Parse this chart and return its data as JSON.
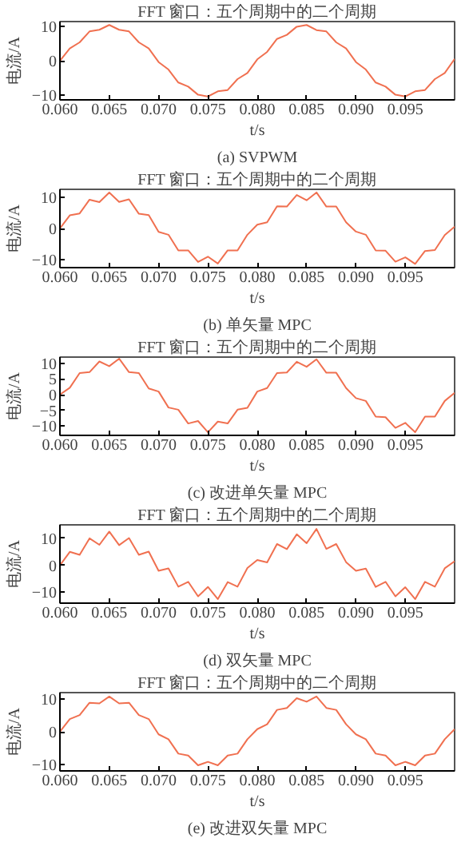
{
  "chart_data": [
    {
      "type": "line",
      "title": "FFT 窗口：五个周期中的二个周期",
      "xlabel": "t/s",
      "ylabel": "电流/A",
      "annotations": [
        "(a) SVPWM"
      ],
      "grid": false,
      "xlim": [
        0.06,
        0.1
      ],
      "xticks": [
        {
          "value": 0.06,
          "label": "0.060"
        },
        {
          "value": 0.065,
          "label": "0.065"
        },
        {
          "value": 0.07,
          "label": "0.070"
        },
        {
          "value": 0.075,
          "label": "0.075"
        },
        {
          "value": 0.08,
          "label": "0.080"
        },
        {
          "value": 0.085,
          "label": "0.085"
        },
        {
          "value": 0.09,
          "label": "0.090"
        },
        {
          "value": 0.095,
          "label": "0.095"
        }
      ],
      "ylim": [
        -11.5,
        11.5
      ],
      "yticks": [
        -10,
        0,
        10
      ],
      "x": [
        0.06,
        0.061,
        0.062,
        0.063,
        0.064,
        0.065,
        0.066,
        0.067,
        0.068,
        0.069,
        0.07,
        0.071,
        0.072,
        0.073,
        0.074,
        0.075,
        0.076,
        0.077,
        0.078,
        0.079,
        0.08,
        0.081,
        0.082,
        0.083,
        0.084,
        0.085,
        0.086,
        0.087,
        0.088,
        0.089,
        0.09,
        0.091,
        0.092,
        0.093,
        0.094,
        0.095,
        0.096,
        0.097,
        0.098,
        0.099,
        0.1
      ],
      "series": [
        {
          "color": "#f07050",
          "values": [
            0,
            3.6,
            5.4,
            8.6,
            9.1,
            10.5,
            9.1,
            8.6,
            5.4,
            3.6,
            -0.4,
            -2.6,
            -6.4,
            -7.6,
            -10,
            -10.5,
            -9,
            -8.6,
            -5.4,
            -3.6,
            0.4,
            2.6,
            6.4,
            7.6,
            10,
            10.5,
            9,
            8.6,
            5.4,
            3.6,
            -0.4,
            -2.6,
            -6.4,
            -7.6,
            -10,
            -10.5,
            -9,
            -8.6,
            -5.4,
            -3.6,
            0.5
          ]
        }
      ]
    },
    {
      "type": "line",
      "title": "FFT 窗口：五个周期中的二个周期",
      "xlabel": "t/s",
      "ylabel": "电流/A",
      "annotations": [
        "(b) 单矢量 MPC"
      ],
      "grid": false,
      "xlim": [
        0.06,
        0.1
      ],
      "xticks": [
        {
          "value": 0.06,
          "label": "0.060"
        },
        {
          "value": 0.065,
          "label": "0.065"
        },
        {
          "value": 0.07,
          "label": "0.070"
        },
        {
          "value": 0.075,
          "label": "0.075"
        },
        {
          "value": 0.08,
          "label": "0.080"
        },
        {
          "value": 0.085,
          "label": "0.085"
        },
        {
          "value": 0.09,
          "label": "0.090"
        },
        {
          "value": 0.095,
          "label": "0.095"
        }
      ],
      "ylim": [
        -12.5,
        12.5
      ],
      "yticks": [
        -10,
        0,
        10
      ],
      "x": [
        0.06,
        0.061,
        0.062,
        0.063,
        0.064,
        0.065,
        0.066,
        0.067,
        0.068,
        0.069,
        0.07,
        0.071,
        0.072,
        0.073,
        0.074,
        0.075,
        0.076,
        0.077,
        0.078,
        0.079,
        0.08,
        0.081,
        0.082,
        0.083,
        0.084,
        0.085,
        0.086,
        0.087,
        0.088,
        0.089,
        0.09,
        0.091,
        0.092,
        0.093,
        0.094,
        0.095,
        0.096,
        0.097,
        0.098,
        0.099,
        0.1
      ],
      "series": [
        {
          "color": "#f07050",
          "values": [
            0,
            4.2,
            4.8,
            9.2,
            8.4,
            11.5,
            8.5,
            9.3,
            4.7,
            4.3,
            -1.1,
            -2,
            -7,
            -7,
            -10.7,
            -9,
            -11.2,
            -7,
            -7,
            -2,
            1.2,
            2,
            7.1,
            7,
            10.7,
            9,
            11.5,
            7,
            7,
            2,
            -1,
            -2,
            -7,
            -7.1,
            -10.6,
            -9.2,
            -11.3,
            -7.2,
            -6.9,
            -2.1,
            0.6
          ]
        }
      ]
    },
    {
      "type": "line",
      "title": "FFT 窗口：五个周期中的二个周期",
      "xlabel": "t/s",
      "ylabel": "电流/A",
      "annotations": [
        "(c) 改进单矢量 MPC"
      ],
      "grid": false,
      "xlim": [
        0.06,
        0.1
      ],
      "xticks": [
        {
          "value": 0.06,
          "label": "0.060"
        },
        {
          "value": 0.065,
          "label": "0.065"
        },
        {
          "value": 0.07,
          "label": "0.070"
        },
        {
          "value": 0.075,
          "label": "0.075"
        },
        {
          "value": 0.08,
          "label": "0.080"
        },
        {
          "value": 0.085,
          "label": "0.085"
        },
        {
          "value": 0.09,
          "label": "0.090"
        },
        {
          "value": 0.095,
          "label": "0.095"
        }
      ],
      "ylim": [
        -13,
        12
      ],
      "yticks": [
        -10,
        -5,
        0,
        5,
        10
      ],
      "x": [
        0.06,
        0.061,
        0.062,
        0.063,
        0.064,
        0.065,
        0.066,
        0.067,
        0.068,
        0.069,
        0.07,
        0.071,
        0.072,
        0.073,
        0.074,
        0.075,
        0.076,
        0.077,
        0.078,
        0.079,
        0.08,
        0.081,
        0.082,
        0.083,
        0.084,
        0.085,
        0.086,
        0.087,
        0.088,
        0.089,
        0.09,
        0.091,
        0.092,
        0.093,
        0.094,
        0.095,
        0.096,
        0.097,
        0.098,
        0.099,
        0.1
      ],
      "series": [
        {
          "color": "#f07050",
          "values": [
            0,
            2.2,
            6.9,
            7.2,
            10.6,
            9.1,
            11.5,
            7.2,
            6.9,
            2,
            1,
            -4.1,
            -4.8,
            -9.2,
            -8.4,
            -12,
            -8.6,
            -9.2,
            -4.8,
            -4.2,
            1,
            2.1,
            6.9,
            7.1,
            10.5,
            8.9,
            11.3,
            7,
            7,
            2.1,
            -1.1,
            -2,
            -7,
            -7.2,
            -10.6,
            -9,
            -12,
            -7,
            -7,
            -2,
            0.6
          ]
        }
      ]
    },
    {
      "type": "line",
      "title": "FFT 窗口：五个周期中的二个周期",
      "xlabel": "t/s",
      "ylabel": "电流/A",
      "annotations": [
        "(d) 双矢量 MPC"
      ],
      "grid": false,
      "xlim": [
        0.06,
        0.1
      ],
      "xticks": [
        {
          "value": 0.06,
          "label": "0.060"
        },
        {
          "value": 0.065,
          "label": "0.065"
        },
        {
          "value": 0.07,
          "label": "0.070"
        },
        {
          "value": 0.075,
          "label": "0.075"
        },
        {
          "value": 0.08,
          "label": "0.080"
        },
        {
          "value": 0.085,
          "label": "0.085"
        },
        {
          "value": 0.09,
          "label": "0.090"
        },
        {
          "value": 0.095,
          "label": "0.095"
        }
      ],
      "ylim": [
        -14,
        15
      ],
      "yticks": [
        -10,
        0,
        10
      ],
      "x": [
        0.06,
        0.061,
        0.062,
        0.063,
        0.064,
        0.065,
        0.066,
        0.067,
        0.068,
        0.069,
        0.07,
        0.071,
        0.072,
        0.073,
        0.074,
        0.075,
        0.076,
        0.077,
        0.078,
        0.079,
        0.08,
        0.081,
        0.082,
        0.083,
        0.084,
        0.085,
        0.086,
        0.087,
        0.088,
        0.089,
        0.09,
        0.091,
        0.092,
        0.093,
        0.094,
        0.095,
        0.096,
        0.097,
        0.098,
        0.099,
        0.1
      ],
      "series": [
        {
          "color": "#f07050",
          "values": [
            0,
            5,
            3.9,
            10,
            7.6,
            12.5,
            7.5,
            10.1,
            3.9,
            5.1,
            -2,
            -1.1,
            -7.9,
            -6.1,
            -11.5,
            -8,
            -12.5,
            -6.2,
            -7.9,
            -1,
            2,
            1.1,
            7.9,
            6,
            11.5,
            8.2,
            13.5,
            6.1,
            7.9,
            1.2,
            -2,
            -1.2,
            -8,
            -6.1,
            -11.5,
            -8.1,
            -12.5,
            -6.1,
            -7.9,
            -1.1,
            1.5
          ]
        }
      ]
    },
    {
      "type": "line",
      "title": "FFT 窗口：五个周期中的二个周期",
      "xlabel": "t/s",
      "ylabel": "电流/A",
      "annotations": [
        "(e) 改进双矢量 MPC"
      ],
      "grid": false,
      "xlim": [
        0.06,
        0.1
      ],
      "xticks": [
        {
          "value": 0.06,
          "label": "0.060"
        },
        {
          "value": 0.065,
          "label": "0.065"
        },
        {
          "value": 0.07,
          "label": "0.070"
        },
        {
          "value": 0.075,
          "label": "0.075"
        },
        {
          "value": 0.08,
          "label": "0.080"
        },
        {
          "value": 0.085,
          "label": "0.085"
        },
        {
          "value": 0.09,
          "label": "0.090"
        },
        {
          "value": 0.095,
          "label": "0.095"
        }
      ],
      "ylim": [
        -12,
        12
      ],
      "yticks": [
        -10,
        0,
        10
      ],
      "x": [
        0.06,
        0.061,
        0.062,
        0.063,
        0.064,
        0.065,
        0.066,
        0.067,
        0.068,
        0.069,
        0.07,
        0.071,
        0.072,
        0.073,
        0.074,
        0.075,
        0.076,
        0.077,
        0.078,
        0.079,
        0.08,
        0.081,
        0.082,
        0.083,
        0.084,
        0.085,
        0.086,
        0.087,
        0.088,
        0.089,
        0.09,
        0.091,
        0.092,
        0.093,
        0.094,
        0.095,
        0.096,
        0.097,
        0.098,
        0.099,
        0.1
      ],
      "series": [
        {
          "color": "#f07050",
          "values": [
            0,
            3.9,
            5.1,
            8.9,
            8.7,
            10.8,
            8.7,
            8.9,
            5.1,
            3.9,
            -0.8,
            -2.3,
            -6.7,
            -7.3,
            -10.3,
            -9.2,
            -10.3,
            -7.3,
            -6.7,
            -2.3,
            0.8,
            2.3,
            6.7,
            7.3,
            10.3,
            9.2,
            10.8,
            7.3,
            6.7,
            2.3,
            -0.8,
            -2.3,
            -6.7,
            -7.3,
            -10.3,
            -9.2,
            -10.3,
            -7.3,
            -6.7,
            -2.3,
            0.8
          ]
        }
      ]
    }
  ]
}
